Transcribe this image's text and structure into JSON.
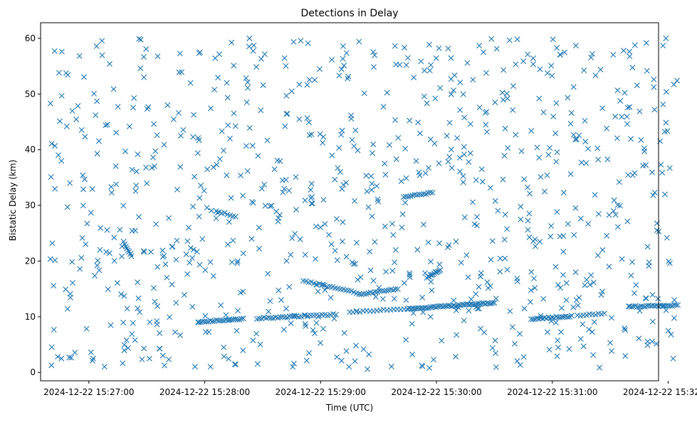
{
  "chart_data": {
    "type": "scatter",
    "title": "Detections in Delay",
    "xlabel": "Time (UTC)",
    "ylabel": "Bistatic Delay (km)",
    "x_unit": "seconds",
    "x_origin_label": "2024-12-22 15:27:00",
    "xlim": [
      -25,
      295
    ],
    "ylim": [
      -1.5,
      62.8
    ],
    "x_ticks": [
      {
        "value": 0,
        "label": "2024-12-22 15:27:00"
      },
      {
        "value": 60,
        "label": "2024-12-22 15:28:00"
      },
      {
        "value": 120,
        "label": "2024-12-22 15:29:00"
      },
      {
        "value": 180,
        "label": "2024-12-22 15:30:00"
      },
      {
        "value": 240,
        "label": "2024-12-22 15:31:00"
      },
      {
        "value": 300,
        "label": "2024-12-22 15:32:00"
      }
    ],
    "y_ticks": [
      0,
      10,
      20,
      30,
      40,
      50,
      60
    ],
    "grid": false,
    "legend": "none",
    "marker": "x",
    "color": "#1f77b4",
    "series": [
      {
        "name": "",
        "tracks": [
          {
            "x_start": 57,
            "x_end": 80,
            "y_start": 9.1,
            "y_end": 9.6,
            "count": 24
          },
          {
            "x_start": 87,
            "x_end": 110,
            "y_start": 9.7,
            "y_end": 10.1,
            "count": 20
          },
          {
            "x_start": 112,
            "x_end": 128,
            "y_start": 10.2,
            "y_end": 10.4,
            "count": 12
          },
          {
            "x_start": 111,
            "x_end": 140,
            "y_start": 16.5,
            "y_end": 14.2,
            "count": 22
          },
          {
            "x_start": 140,
            "x_end": 160,
            "y_start": 14.0,
            "y_end": 15.0,
            "count": 18
          },
          {
            "x_start": 135,
            "x_end": 165,
            "y_start": 10.9,
            "y_end": 11.4,
            "count": 18
          },
          {
            "x_start": 165,
            "x_end": 210,
            "y_start": 11.4,
            "y_end": 12.5,
            "count": 50
          },
          {
            "x_start": 163,
            "x_end": 178,
            "y_start": 31.5,
            "y_end": 32.3,
            "count": 14
          },
          {
            "x_start": 175,
            "x_end": 182,
            "y_start": 17.0,
            "y_end": 18.5,
            "count": 12
          },
          {
            "x_start": 229,
            "x_end": 250,
            "y_start": 9.6,
            "y_end": 10.1,
            "count": 22
          },
          {
            "x_start": 253,
            "x_end": 267,
            "y_start": 10.2,
            "y_end": 10.6,
            "count": 10
          },
          {
            "x_start": 280,
            "x_end": 305,
            "y_start": 11.8,
            "y_end": 12.1,
            "count": 26
          },
          {
            "x_start": 66,
            "x_end": 76,
            "y_start": 29.0,
            "y_end": 28.0,
            "count": 8
          },
          {
            "x_start": 18,
            "x_end": 22,
            "y_start": 23.5,
            "y_end": 20.8,
            "count": 8
          }
        ],
        "clutter": {
          "count": 880,
          "x_range": [
            -20,
            305
          ],
          "y_range": [
            0.5,
            60.0
          ],
          "seed": 20241222
        }
      }
    ]
  }
}
